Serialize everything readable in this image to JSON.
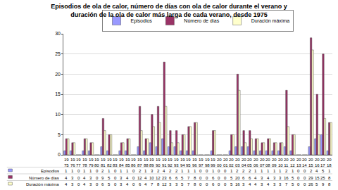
{
  "chart_data": {
    "type": "bar",
    "title": "Episodios de ola de calor, número de días con ola de calor durante el verano y duración de la ola de calor más larga de cada verano, desde 1975",
    "categories": [
      "1975",
      "1976",
      "1977",
      "1978",
      "1979",
      "1980",
      "1981",
      "1982",
      "1983",
      "1984",
      "1985",
      "1986",
      "1987",
      "1988",
      "1989",
      "1990",
      "1991",
      "1992",
      "1993",
      "1994",
      "1995",
      "1996",
      "1997",
      "1998",
      "1999",
      "2000",
      "2001",
      "2002",
      "2003",
      "2004",
      "2005",
      "2006",
      "2007",
      "2008",
      "2009",
      "2010",
      "2011",
      "2012",
      "2013",
      "2014",
      "2015",
      "2016",
      "2017",
      "2018"
    ],
    "series": [
      {
        "name": "Episodios",
        "color": "#9999ff",
        "values": [
          1,
          1,
          0,
          1,
          1,
          0,
          2,
          1,
          0,
          1,
          1,
          0,
          2,
          1,
          3,
          2,
          4,
          2,
          2,
          1,
          1,
          1,
          0,
          0,
          1,
          0,
          0,
          1,
          2,
          2,
          2,
          1,
          1,
          1,
          1,
          1,
          2,
          1,
          0,
          0,
          2,
          4,
          5,
          1
        ]
      },
      {
        "name": "Número de días",
        "color": "#993366",
        "values": [
          4,
          3,
          0,
          4,
          3,
          0,
          9,
          5,
          0,
          3,
          4,
          0,
          12,
          4,
          10,
          12,
          23,
          6,
          6,
          5,
          7,
          8,
          0,
          0,
          6,
          0,
          0,
          5,
          20,
          6,
          6,
          4,
          3,
          4,
          3,
          3,
          16,
          5,
          0,
          0,
          29,
          15,
          25,
          8
        ]
      },
      {
        "name": "Duración máxima",
        "color": "#ffffcc",
        "values": [
          4,
          3,
          0,
          4,
          3,
          0,
          6,
          5,
          0,
          3,
          4,
          0,
          6,
          4,
          7,
          8,
          12,
          3,
          3,
          5,
          7,
          8,
          0,
          0,
          6,
          0,
          0,
          5,
          16,
          3,
          4,
          4,
          3,
          4,
          3,
          3,
          7,
          5,
          0,
          0,
          26,
          5,
          9,
          8
        ]
      }
    ],
    "ylim": [
      0,
      30
    ],
    "yticks": [
      0,
      5,
      10,
      15,
      20,
      25,
      30
    ],
    "grid": true,
    "legend": "top"
  }
}
